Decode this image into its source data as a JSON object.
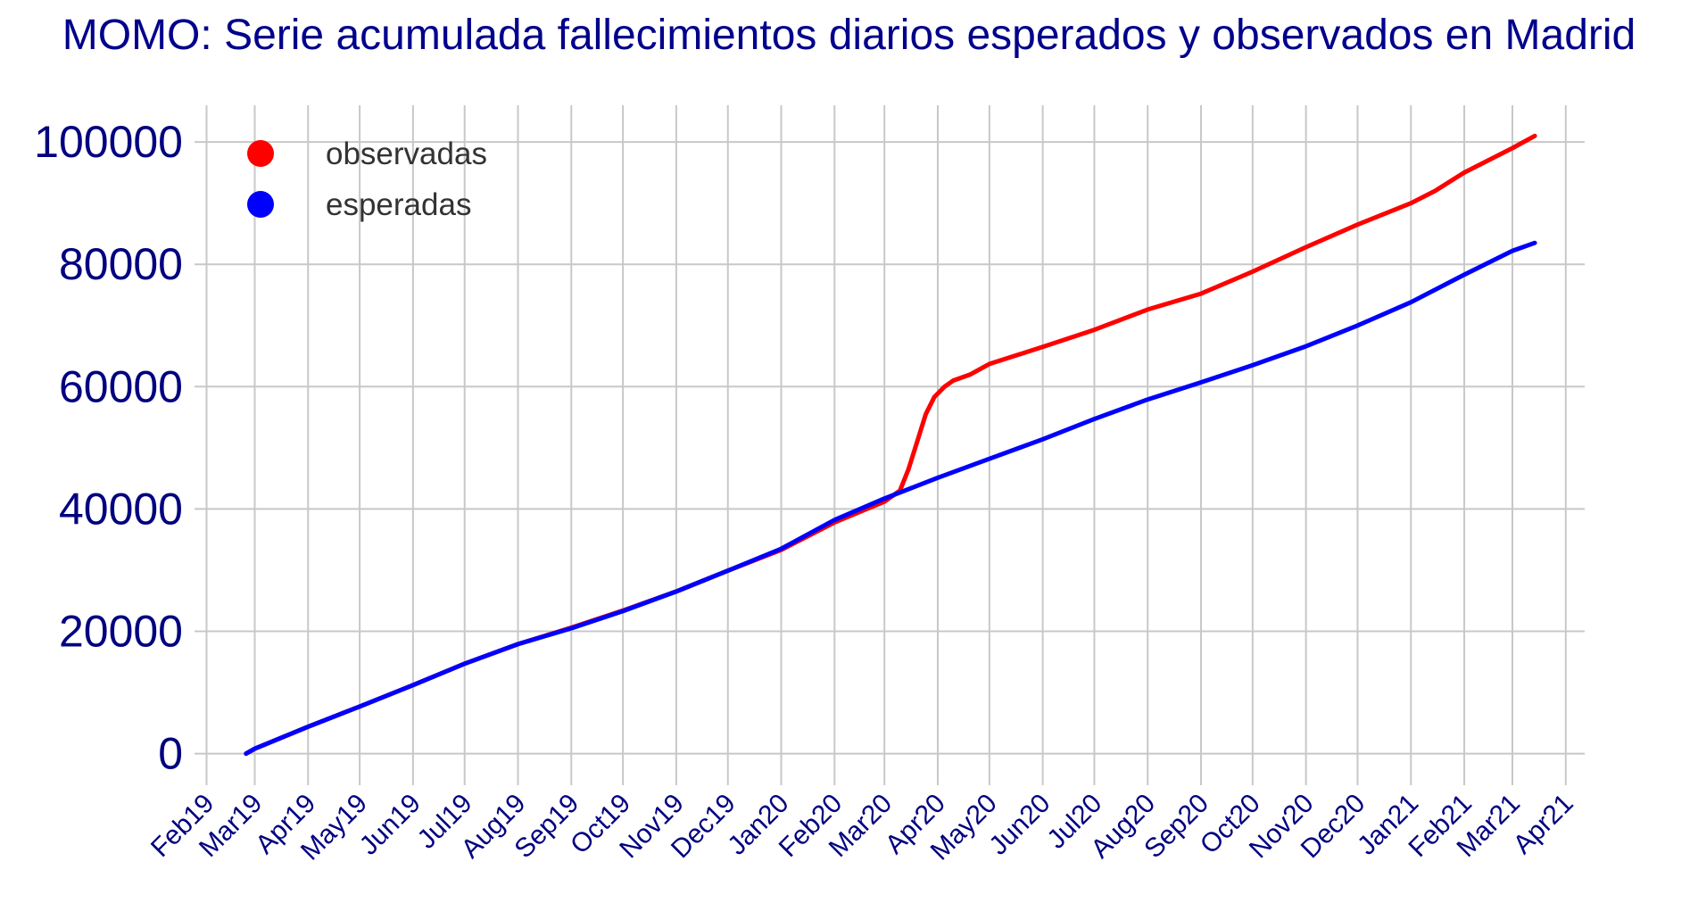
{
  "chart_data": {
    "type": "line",
    "title": "MOMO: Serie acumulada fallecimientos diarios esperados y observados en Madrid",
    "xlabel": "",
    "ylabel": "",
    "x_range": [
      "2019-01-25",
      "2021-04-12"
    ],
    "ylim": [
      -4000,
      106000
    ],
    "y_ticks": [
      0,
      20000,
      40000,
      60000,
      80000,
      100000
    ],
    "y_tick_labels": [
      "0",
      "20000",
      "40000",
      "60000",
      "80000",
      "100000"
    ],
    "x_ticks": [
      "2019-02-01",
      "2019-03-01",
      "2019-04-01",
      "2019-05-01",
      "2019-06-01",
      "2019-07-01",
      "2019-08-01",
      "2019-09-01",
      "2019-10-01",
      "2019-11-01",
      "2019-12-01",
      "2020-01-01",
      "2020-02-01",
      "2020-03-01",
      "2020-04-01",
      "2020-05-01",
      "2020-06-01",
      "2020-07-01",
      "2020-08-01",
      "2020-09-01",
      "2020-10-01",
      "2020-11-01",
      "2020-12-01",
      "2021-01-01",
      "2021-02-01",
      "2021-03-01",
      "2021-04-01"
    ],
    "x_tick_labels": [
      "Feb19",
      "Mar19",
      "Apr19",
      "May19",
      "Jun19",
      "Jul19",
      "Aug19",
      "Sep19",
      "Oct19",
      "Nov19",
      "Dec19",
      "Jan20",
      "Feb20",
      "Mar20",
      "Apr20",
      "May20",
      "Jun20",
      "Jul20",
      "Aug20",
      "Sep20",
      "Oct20",
      "Nov20",
      "Dec20",
      "Jan21",
      "Feb21",
      "Mar21",
      "Apr21"
    ],
    "grid": true,
    "legend_position": "top-left",
    "series": [
      {
        "name": "observadas",
        "color": "#ff0000",
        "x": [
          "2019-02-24",
          "2019-03-01",
          "2019-04-01",
          "2019-05-01",
          "2019-06-01",
          "2019-07-01",
          "2019-08-01",
          "2019-09-01",
          "2019-10-01",
          "2019-11-01",
          "2019-12-01",
          "2020-01-01",
          "2020-02-01",
          "2020-03-01",
          "2020-03-10",
          "2020-03-15",
          "2020-03-20",
          "2020-03-25",
          "2020-03-30",
          "2020-04-05",
          "2020-04-10",
          "2020-04-20",
          "2020-05-01",
          "2020-06-01",
          "2020-07-01",
          "2020-08-01",
          "2020-09-01",
          "2020-10-01",
          "2020-11-01",
          "2020-12-01",
          "2021-01-01",
          "2021-01-15",
          "2021-02-01",
          "2021-03-01",
          "2021-03-14"
        ],
        "y": [
          0,
          800,
          4400,
          7700,
          11200,
          14700,
          17900,
          20600,
          23400,
          26500,
          29900,
          33300,
          37800,
          41200,
          43000,
          46500,
          51000,
          55500,
          58300,
          60000,
          61000,
          62000,
          63700,
          66500,
          69300,
          72600,
          75200,
          78800,
          82800,
          86500,
          90000,
          92000,
          95000,
          99000,
          101000
        ]
      },
      {
        "name": "esperadas",
        "color": "#0000ff",
        "x": [
          "2019-02-24",
          "2019-03-01",
          "2019-04-01",
          "2019-05-01",
          "2019-06-01",
          "2019-07-01",
          "2019-08-01",
          "2019-09-01",
          "2019-10-01",
          "2019-11-01",
          "2019-12-01",
          "2020-01-01",
          "2020-02-01",
          "2020-03-01",
          "2020-04-01",
          "2020-05-01",
          "2020-06-01",
          "2020-07-01",
          "2020-08-01",
          "2020-09-01",
          "2020-10-01",
          "2020-11-01",
          "2020-12-01",
          "2021-01-01",
          "2021-02-01",
          "2021-03-01",
          "2021-03-14"
        ],
        "y": [
          0,
          800,
          4400,
          7700,
          11200,
          14700,
          17900,
          20500,
          23300,
          26500,
          29900,
          33500,
          38200,
          41700,
          45100,
          48200,
          51400,
          54700,
          57900,
          60700,
          63500,
          66600,
          70000,
          73800,
          78300,
          82200,
          83500
        ]
      }
    ]
  }
}
